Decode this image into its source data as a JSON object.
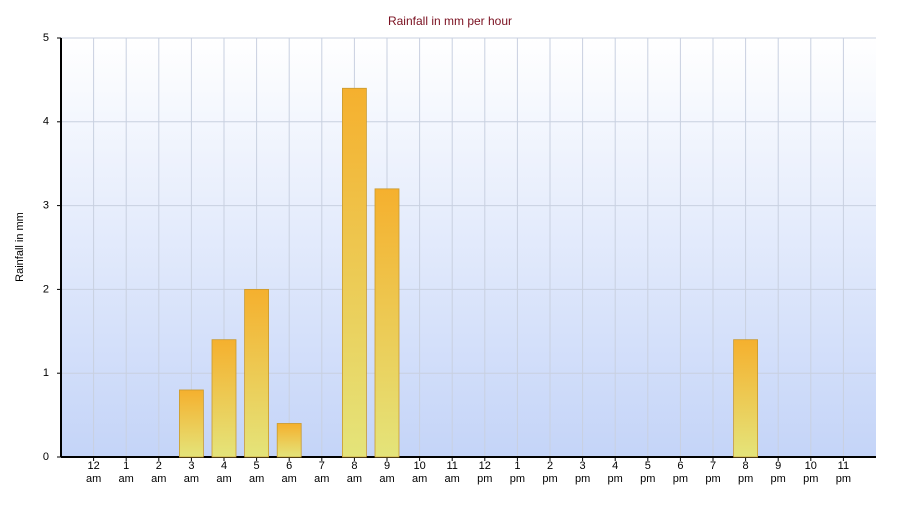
{
  "chart_data": {
    "type": "bar",
    "title": "Rainfall in mm per hour",
    "y_label": "Rainfall in mm",
    "categories": [
      "12 am",
      "1 am",
      "2 am",
      "3 am",
      "4 am",
      "5 am",
      "6 am",
      "7 am",
      "8 am",
      "9 am",
      "10 am",
      "11 am",
      "12 pm",
      "1 pm",
      "2 pm",
      "3 pm",
      "4 pm",
      "5 pm",
      "6 pm",
      "7 pm",
      "8 pm",
      "9 pm",
      "10 pm",
      "11 pm"
    ],
    "values": [
      0,
      0,
      0,
      0.8,
      1.4,
      2.0,
      0.4,
      0,
      4.4,
      3.2,
      0,
      0,
      0,
      0,
      0,
      0,
      0,
      0,
      0,
      0,
      1.4,
      0,
      0,
      0
    ],
    "color": "#f5b02e",
    "ylim": [
      0,
      5
    ],
    "yticks": [
      0,
      1,
      2,
      3,
      4,
      5
    ],
    "grid": true
  }
}
